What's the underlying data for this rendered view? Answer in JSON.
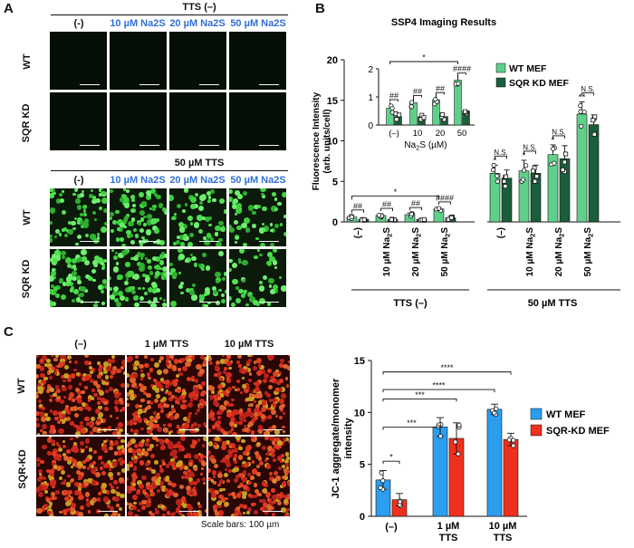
{
  "panels": {
    "a": "A",
    "b": "B",
    "c": "C"
  },
  "panelA": {
    "top_title": "TTS (–)",
    "bottom_title": "50 µM TTS",
    "columns": [
      "(-)",
      "10 µM Na2S",
      "20 µM Na2S",
      "50 µM Na2S"
    ],
    "rows": [
      "WT",
      "SQR KD"
    ]
  },
  "panelC": {
    "columns": [
      "(–)",
      "1 µM TTS",
      "10 µM TTS"
    ],
    "rows": [
      "WT",
      "SQR-KD"
    ],
    "scale_note": "Scale bars: 100 µm"
  },
  "colors": {
    "wt_mef_b": "#5fd08a",
    "sqr_mef_b": "#1a5e3a",
    "wt_mef_c": "#2b9ef0",
    "sqr_mef_c": "#f0301e"
  },
  "chart_data": [
    {
      "type": "bar",
      "title": "SSP4 Imaging Results",
      "ylabel": "Fluorescence Intensity (arb. units/cell)",
      "ylim": [
        0,
        20
      ],
      "yticks": [
        0,
        5,
        10,
        15,
        20
      ],
      "categories": [
        "(–)",
        "10 µM Na2S",
        "20 µM Na2S",
        "50 µM Na2S",
        "(–)",
        "10 µM Na2S",
        "20 µM Na2S",
        "50 µM Na2S"
      ],
      "groups": [
        {
          "label": "TTS (–)"
        },
        {
          "label": "50 µM TTS"
        }
      ],
      "series": [
        {
          "name": "WT MEF",
          "values": [
            0.6,
            0.8,
            0.9,
            1.6,
            6.0,
            6.3,
            8.3,
            13.3
          ],
          "errors": [
            0.2,
            0.2,
            0.2,
            0.2,
            1.0,
            1.3,
            1.2,
            1.5
          ]
        },
        {
          "name": "SQR KD MEF",
          "values": [
            0.3,
            0.3,
            0.3,
            0.5,
            5.4,
            6.0,
            7.8,
            12.0
          ],
          "errors": [
            0.1,
            0.1,
            0.1,
            0.2,
            1.0,
            1.0,
            1.6,
            1.2
          ]
        }
      ],
      "annotations": {
        "pair": [
          "##",
          "##",
          "##",
          "####",
          "N.S.",
          "N.S.",
          "N.S.",
          "N.S."
        ],
        "above_wt": [
          "",
          "",
          "",
          "",
          "*",
          "*",
          "*",
          "**"
        ],
        "bracket_star": "*"
      },
      "inset": {
        "xlabel": "Na2S (µM)",
        "categories": [
          "(–)",
          "10",
          "20",
          "50"
        ],
        "ylim": [
          0,
          2
        ],
        "yticks": [
          0,
          1,
          2
        ],
        "wt": [
          0.6,
          0.8,
          0.9,
          1.6
        ],
        "sqr": [
          0.3,
          0.3,
          0.3,
          0.5
        ],
        "pair": [
          "##",
          "##",
          "##",
          "####"
        ],
        "bracket_star": "*"
      }
    },
    {
      "type": "bar",
      "ylabel": "JC-1 aggregate/monomer intensity",
      "ylim": [
        0,
        15
      ],
      "yticks": [
        0,
        5,
        10,
        15
      ],
      "categories": [
        "(–)",
        "1 µM TTS",
        "10 µM TTS"
      ],
      "series": [
        {
          "name": "WT MEF",
          "values": [
            3.5,
            8.6,
            10.3
          ],
          "errors": [
            0.9,
            0.9,
            0.5
          ]
        },
        {
          "name": "SQR-KD MEF",
          "values": [
            1.6,
            7.5,
            7.4
          ],
          "errors": [
            0.6,
            1.5,
            0.6
          ]
        }
      ],
      "annotations": {
        "brackets": [
          "*",
          "***",
          "***",
          "****",
          "****"
        ]
      }
    }
  ]
}
